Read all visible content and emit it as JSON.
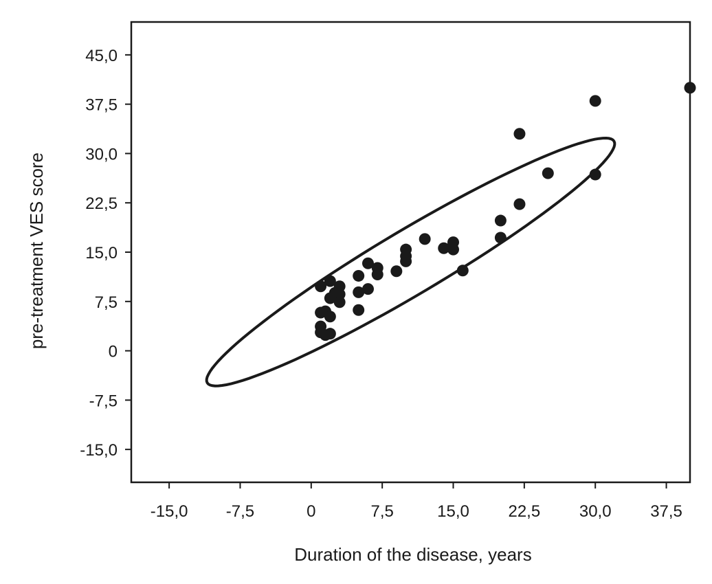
{
  "chart_data": {
    "type": "scatter",
    "title": "",
    "xlabel": "Duration of the disease, years",
    "ylabel": "pre-treatment VES score",
    "xlim": [
      -19,
      40
    ],
    "ylim": [
      -20,
      50
    ],
    "x_ticks": [
      -15,
      -7.5,
      0,
      7.5,
      15,
      22.5,
      30,
      37.5
    ],
    "x_tick_labels": [
      "-15,0",
      "-7,5",
      "0",
      "7,5",
      "15,0",
      "22,5",
      "30,0",
      "37,5"
    ],
    "y_ticks": [
      45,
      37.5,
      30,
      22.5,
      15,
      7.5,
      0,
      -7.5,
      -15
    ],
    "y_tick_labels": [
      "45,0",
      "37,5",
      "30,0",
      "22,5",
      "15,0",
      "7,5",
      "0",
      "-7,5",
      "-15,0"
    ],
    "grid": false,
    "point_color": "#1a1a1a",
    "points": [
      {
        "x": 40,
        "y": 40
      },
      {
        "x": 30,
        "y": 38
      },
      {
        "x": 22,
        "y": 33
      },
      {
        "x": 25,
        "y": 27
      },
      {
        "x": 30,
        "y": 26.8
      },
      {
        "x": 22,
        "y": 22.3
      },
      {
        "x": 20,
        "y": 19.8
      },
      {
        "x": 20,
        "y": 17.2
      },
      {
        "x": 12,
        "y": 17
      },
      {
        "x": 15,
        "y": 16.5
      },
      {
        "x": 14,
        "y": 15.6
      },
      {
        "x": 15,
        "y": 15.4
      },
      {
        "x": 10,
        "y": 15.4
      },
      {
        "x": 10,
        "y": 14.4
      },
      {
        "x": 10,
        "y": 13.6
      },
      {
        "x": 6,
        "y": 13.3
      },
      {
        "x": 7,
        "y": 12.6
      },
      {
        "x": 16,
        "y": 12.2
      },
      {
        "x": 9,
        "y": 12.1
      },
      {
        "x": 7,
        "y": 11.6
      },
      {
        "x": 5,
        "y": 11.4
      },
      {
        "x": 2,
        "y": 10.6
      },
      {
        "x": 1,
        "y": 9.8
      },
      {
        "x": 3,
        "y": 9.8
      },
      {
        "x": 6,
        "y": 9.4
      },
      {
        "x": 5,
        "y": 8.9
      },
      {
        "x": 2.5,
        "y": 8.8
      },
      {
        "x": 3,
        "y": 8.6
      },
      {
        "x": 2,
        "y": 8
      },
      {
        "x": 3,
        "y": 7.4
      },
      {
        "x": 5,
        "y": 6.2
      },
      {
        "x": 1.5,
        "y": 6
      },
      {
        "x": 1,
        "y": 5.8
      },
      {
        "x": 2,
        "y": 5.2
      },
      {
        "x": 1,
        "y": 3.7
      },
      {
        "x": 1,
        "y": 2.8
      },
      {
        "x": 2,
        "y": 2.6
      },
      {
        "x": 1.5,
        "y": 2.4
      }
    ],
    "ellipse": {
      "cx": 10.5,
      "cy": 13.5,
      "rx": 28.3,
      "ry": 4.3,
      "angle_deg": 41
    }
  }
}
